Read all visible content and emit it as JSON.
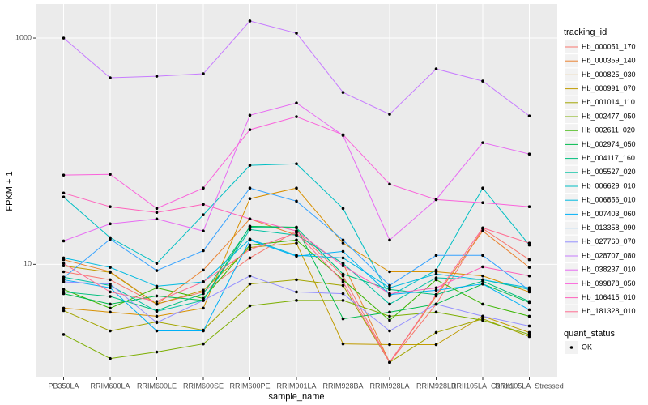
{
  "chart_data": {
    "type": "line",
    "x_label": "sample_name",
    "y_label": "FPKM + 1",
    "log_y": true,
    "grid": true,
    "background": "#EBEBEB",
    "point_color": "#000000",
    "legend_title": "tracking_id",
    "legend_position": "right",
    "status_legend": {
      "title": "quant_status",
      "labels": [
        "OK"
      ]
    },
    "categories": [
      "PB350LA",
      "RRIM600LA",
      "RRIM600LE",
      "RRIM600SE",
      "RRIM600PE",
      "RRIM901LA",
      "RRIM928BA",
      "RRIM928LA",
      "RRIM928LB",
      "RRII105LA_Control",
      "RRII105LA_Stressed"
    ],
    "ylim": [
      1,
      2000
    ],
    "yticks": [
      10,
      1000
    ],
    "series": [
      {
        "name": "Hb_000051_170",
        "color": "#F8766D",
        "values": [
          8.6,
          7.3,
          4.45,
          5.7,
          11.4,
          19.7,
          7.9,
          1.36,
          4.45,
          20.7,
          11.0
        ]
      },
      {
        "name": "Hb_000359_140",
        "color": "#EA8331",
        "values": [
          11.0,
          8.6,
          4.45,
          8.9,
          25.2,
          18.1,
          10.2,
          1.36,
          5.25,
          19.7,
          9.4
        ]
      },
      {
        "name": "Hb_000825_030",
        "color": "#D89000",
        "values": [
          4.1,
          3.78,
          3.48,
          4.1,
          38.1,
          47.2,
          15.4,
          8.6,
          8.6,
          7.9,
          5.7
        ]
      },
      {
        "name": "Hb_000991_070",
        "color": "#C09B00",
        "values": [
          9.7,
          8.5,
          4.45,
          5.9,
          14.1,
          15.4,
          1.98,
          1.95,
          1.95,
          3.48,
          2.5
        ]
      },
      {
        "name": "Hb_001014_110",
        "color": "#A3A500",
        "values": [
          3.9,
          2.58,
          3.1,
          2.62,
          6.7,
          7.3,
          6.5,
          1.36,
          2.5,
          3.3,
          2.3
        ]
      },
      {
        "name": "Hb_002477_050",
        "color": "#7CAE00",
        "values": [
          2.4,
          1.47,
          1.68,
          1.98,
          4.3,
          4.8,
          4.8,
          3.48,
          3.78,
          3.2,
          2.4
        ]
      },
      {
        "name": "Hb_002611_020",
        "color": "#39B600",
        "values": [
          6.0,
          4.1,
          6.2,
          5.0,
          14.8,
          16.4,
          7.3,
          3.2,
          7.3,
          4.45,
          3.48
        ]
      },
      {
        "name": "Hb_002974_050",
        "color": "#00BB4E",
        "values": [
          5.5,
          4.45,
          5.25,
          4.8,
          21.7,
          21.3,
          3.3,
          3.78,
          4.45,
          6.7,
          4.6
        ]
      },
      {
        "name": "Hb_004117_160",
        "color": "#00BF7D",
        "values": [
          5.7,
          5.2,
          3.9,
          5.5,
          21.3,
          21.0,
          8.2,
          6.0,
          5.4,
          7.1,
          4.7
        ]
      },
      {
        "name": "Hb_005527_020",
        "color": "#00C1A3",
        "values": [
          7.7,
          6.5,
          3.84,
          4.8,
          20.3,
          18.1,
          10.2,
          4.45,
          7.6,
          7.3,
          6.0
        ]
      },
      {
        "name": "Hb_006629_010",
        "color": "#00BFC4",
        "values": [
          39.4,
          17.2,
          10.2,
          27.4,
          75,
          77.4,
          31.2,
          5.25,
          8.9,
          47.2,
          14.8
        ]
      },
      {
        "name": "Hb_006856_010",
        "color": "#00BAE0",
        "values": [
          11.4,
          9.4,
          6.4,
          7.0,
          16.7,
          12.0,
          11.4,
          6.2,
          8.2,
          7.3,
          6.2
        ]
      },
      {
        "name": "Hb_007403_060",
        "color": "#00B0F6",
        "values": [
          7.3,
          6.2,
          2.58,
          2.58,
          16.4,
          11.8,
          13.0,
          5.4,
          5.9,
          6.7,
          3.97
        ]
      },
      {
        "name": "Hb_013358_090",
        "color": "#35A2FF",
        "values": [
          7.6,
          16.7,
          8.8,
          13.2,
          47.2,
          36.2,
          16.4,
          6.5,
          12.0,
          12.0,
          5.9
        ]
      },
      {
        "name": "Hb_027760_070",
        "color": "#9590FF",
        "values": [
          7.0,
          6.7,
          3.05,
          4.8,
          7.9,
          5.7,
          5.5,
          2.58,
          4.45,
          3.48,
          2.85
        ]
      },
      {
        "name": "Hb_028707_080",
        "color": "#C77CFF",
        "values": [
          1000,
          446,
          460,
          484,
          1415,
          1104,
          331,
          212,
          534,
          417,
          205
        ]
      },
      {
        "name": "Hb_038237_010",
        "color": "#E76BF3",
        "values": [
          16.1,
          22.8,
          25.2,
          19.7,
          208,
          267,
          138,
          16.4,
          37.4,
          119,
          94.4
        ]
      },
      {
        "name": "Hb_099878_050",
        "color": "#FA62DB",
        "values": [
          61.5,
          62.5,
          31.2,
          47.2,
          155,
          202,
          140,
          51.2,
          37.4,
          35.1,
          32.3
        ]
      },
      {
        "name": "Hb_106415_010",
        "color": "#FF62BC",
        "values": [
          42.7,
          32.3,
          28.8,
          33.9,
          25.2,
          19.7,
          9.7,
          5.5,
          6.2,
          9.5,
          7.9
        ]
      },
      {
        "name": "Hb_181328_010",
        "color": "#FF6C91",
        "values": [
          10.2,
          5.7,
          4.7,
          7.0,
          13.5,
          19.0,
          7.0,
          1.36,
          5.4,
          21.0,
          15.4
        ]
      }
    ]
  }
}
